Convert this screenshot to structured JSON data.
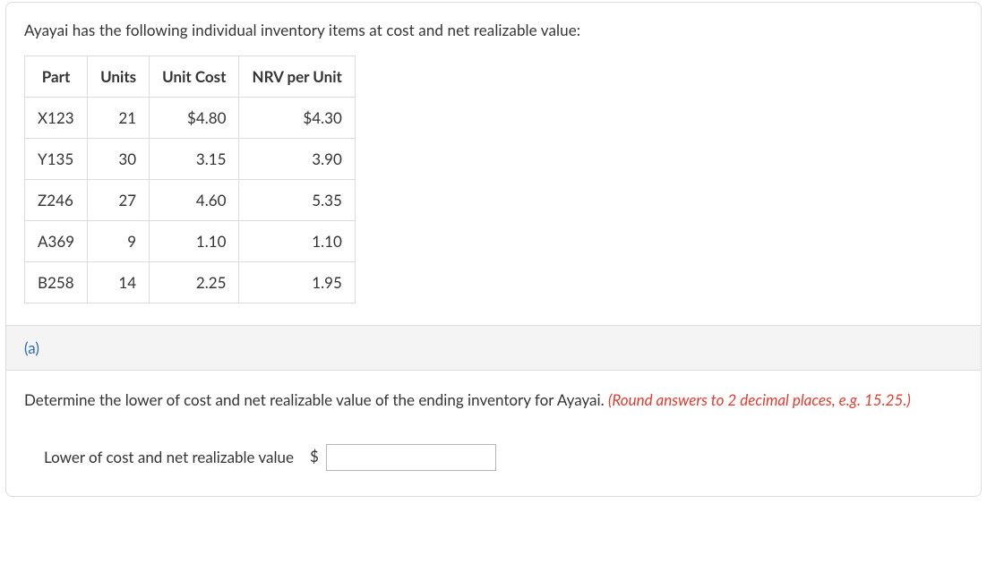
{
  "intro": "Ayayai has the following individual inventory items at cost and net realizable value:",
  "table": {
    "columns": [
      "Part",
      "Units",
      "Unit Cost",
      "NRV per Unit"
    ],
    "rows": [
      [
        "X123",
        "21",
        "$4.80",
        "$4.30"
      ],
      [
        "Y135",
        "30",
        "3.15",
        "3.90"
      ],
      [
        "Z246",
        "27",
        "4.60",
        "5.35"
      ],
      [
        "A369",
        "9",
        "1.10",
        "1.10"
      ],
      [
        "B258",
        "14",
        "2.25",
        "1.95"
      ]
    ]
  },
  "part_label": "(a)",
  "question_main": "Determine the lower of cost and net realizable value of the ending inventory for Ayayai. ",
  "question_hint": "(Round answers to 2 decimal places, e.g. 15.25.)",
  "answer_label": "Lower of cost and net realizable value",
  "currency_symbol": "$",
  "answer_value": "",
  "colors": {
    "text": "#333333",
    "border": "#dcdcdc",
    "section_bg": "#f4f4f4",
    "link_blue": "#2b6cb0",
    "hint_red": "#e23b2e",
    "input_border": "#b5b5b5",
    "background": "#ffffff"
  }
}
